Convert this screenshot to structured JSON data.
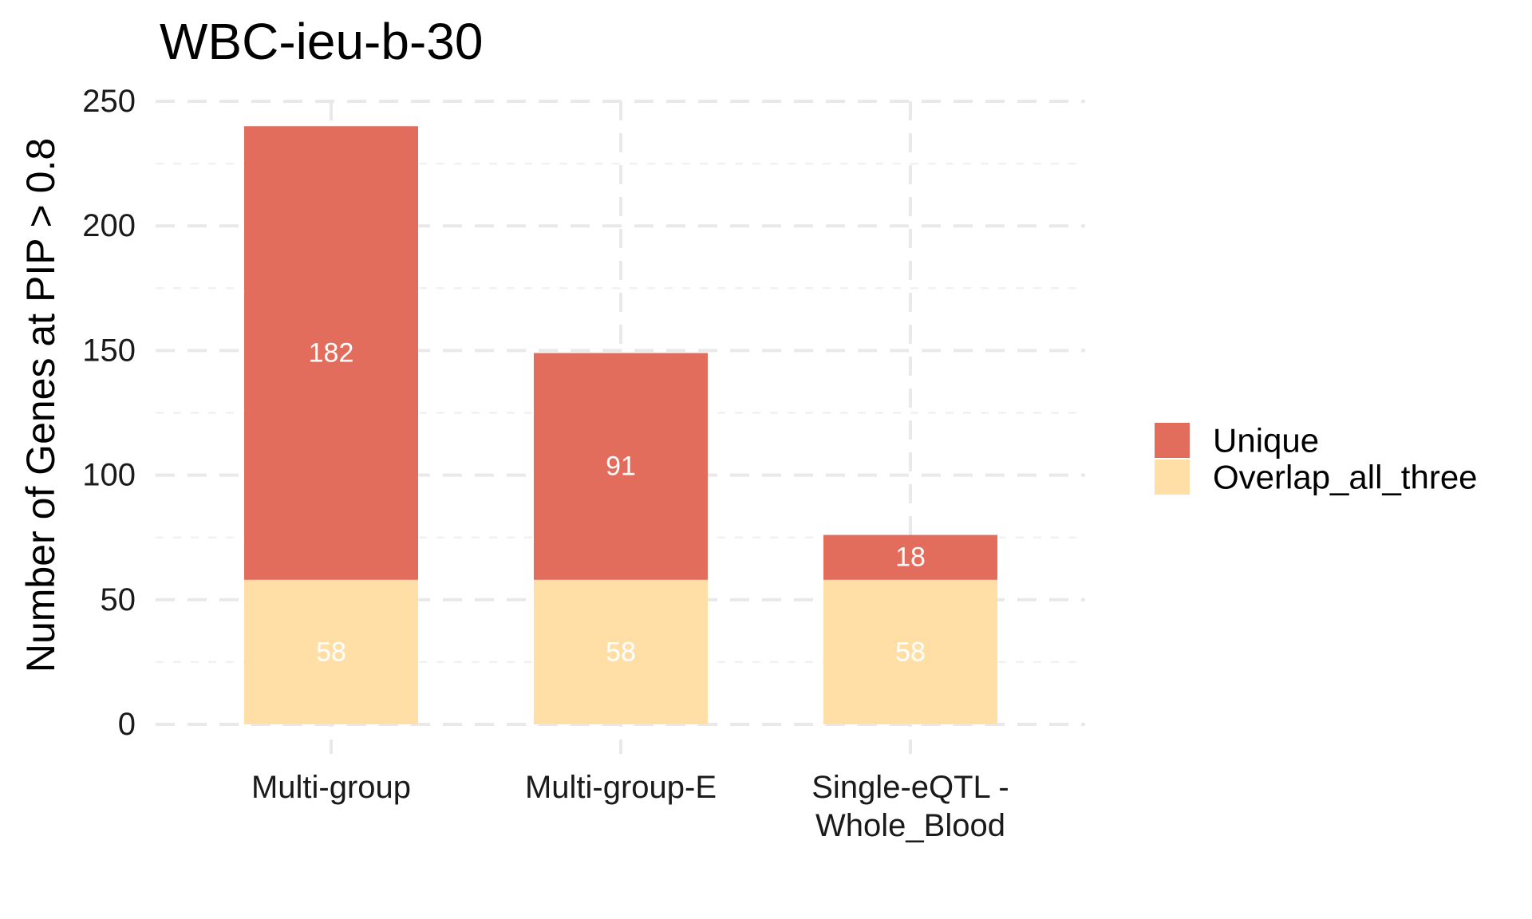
{
  "chart_data": {
    "type": "bar",
    "stacked": true,
    "title": "WBC-ieu-b-30",
    "xlabel": "",
    "ylabel": "Number of Genes at PIP > 0.8",
    "categories": [
      [
        "Multi-group"
      ],
      [
        "Multi-group-E"
      ],
      [
        "Single-eQTL -",
        "Whole_Blood"
      ]
    ],
    "series": [
      {
        "name": "Overlap_all_three",
        "color": "#FFDFA6",
        "values": [
          58,
          58,
          58
        ]
      },
      {
        "name": "Unique",
        "color": "#E26D5C",
        "values": [
          182,
          91,
          18
        ]
      }
    ],
    "legend_order": [
      "Unique",
      "Overlap_all_three"
    ],
    "ylim": [
      0,
      250
    ],
    "yticks": [
      0,
      50,
      100,
      150,
      200,
      250
    ],
    "grid": true,
    "legend_position": "right"
  }
}
